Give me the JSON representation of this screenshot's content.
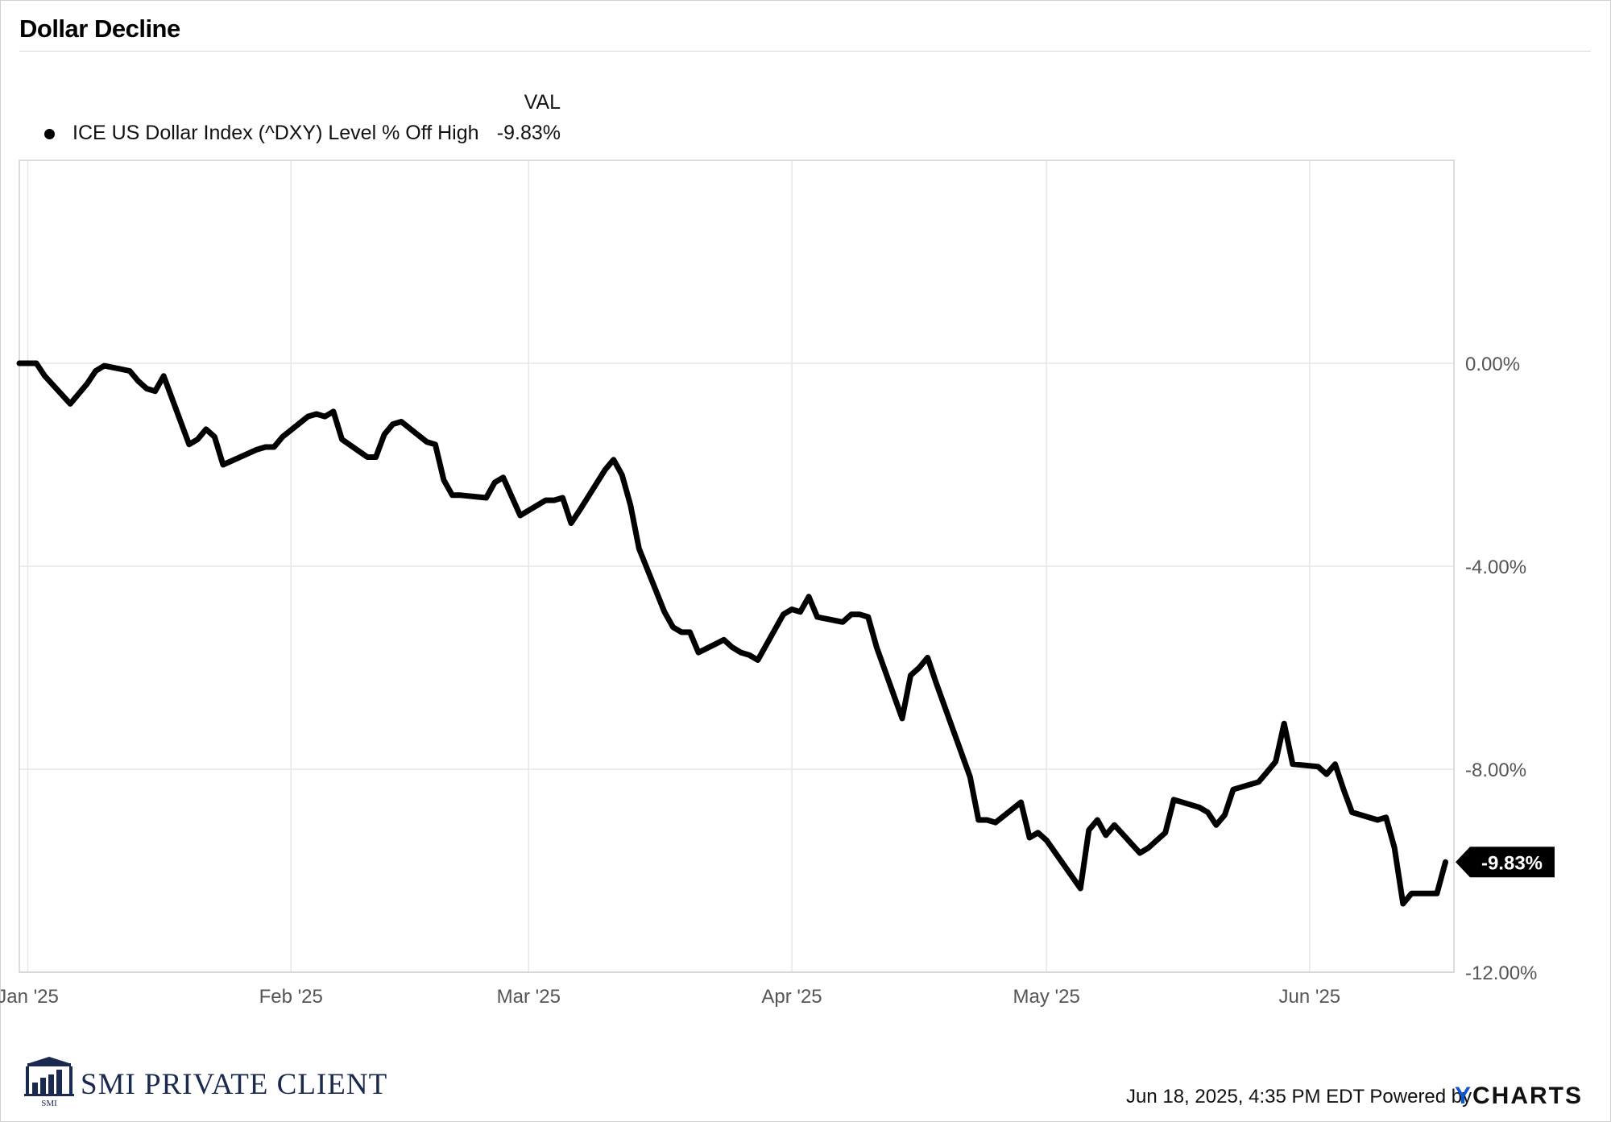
{
  "page": {
    "title": "Dollar Decline"
  },
  "legend": {
    "header": "VAL",
    "series_name": "ICE US Dollar Index (^DXY) Level % Off High",
    "value": "-9.83%"
  },
  "footer": {
    "timestamp": "Jun 18, 2025, 4:35 PM EDT",
    "powered_by": "Powered by",
    "ycharts_y": "Y",
    "ycharts_rest": "CHARTS",
    "brand": "SMI PRIVATE CLIENT",
    "brand_small": "SMI"
  },
  "colors": {
    "line": "#000000",
    "grid": "#e6e6e6",
    "axis_text": "#555555",
    "brand": "#1a2a4f",
    "ycharts_accent": "#1155cc"
  },
  "chart_data": {
    "type": "line",
    "title": "Dollar Decline",
    "x_unit": "days since 2025-01-01",
    "xlim": [
      -1,
      168
    ],
    "ylim": [
      -12,
      4
    ],
    "y_ticks": [
      0,
      -4,
      -8,
      -12
    ],
    "y_tick_labels": [
      "0.00%",
      "-4.00%",
      "-8.00%",
      "-12.00%"
    ],
    "x_ticks": [
      0,
      31,
      59,
      90,
      120,
      151
    ],
    "x_tick_labels": [
      "Jan '25",
      "Feb '25",
      "Mar '25",
      "Apr '25",
      "May '25",
      "Jun '25"
    ],
    "grid": true,
    "legend_position": "top-left",
    "last_value_label": "-9.83%",
    "series": [
      {
        "name": "ICE US Dollar Index (^DXY) Level % Off High",
        "x": [
          -1,
          1,
          2,
          5,
          7,
          8,
          9,
          12,
          13,
          14,
          15,
          16,
          19,
          20,
          21,
          22,
          23,
          27,
          28,
          29,
          30,
          33,
          34,
          35,
          36,
          37,
          40,
          41,
          42,
          43,
          44,
          47,
          48,
          49,
          50,
          51,
          54,
          55,
          56,
          58,
          61,
          62,
          63,
          64,
          65,
          68,
          69,
          70,
          71,
          72,
          75,
          76,
          77,
          78,
          79,
          82,
          83,
          84,
          85,
          86,
          89,
          90,
          91,
          92,
          93,
          96,
          97,
          98,
          99,
          100,
          103,
          104,
          105,
          106,
          107,
          111,
          112,
          113,
          114,
          117,
          118,
          119,
          120,
          124,
          125,
          126,
          127,
          128,
          131,
          132,
          133,
          134,
          135,
          138,
          139,
          140,
          141,
          142,
          145,
          146,
          147,
          148,
          149,
          152,
          153,
          154,
          155,
          156,
          159,
          160,
          161,
          162,
          163,
          166,
          167
        ],
        "y": [
          0.0,
          0.0,
          -0.25,
          -0.8,
          -0.4,
          -0.15,
          -0.05,
          -0.15,
          -0.35,
          -0.5,
          -0.55,
          -0.25,
          -1.6,
          -1.5,
          -1.3,
          -1.45,
          -2.0,
          -1.7,
          -1.65,
          -1.65,
          -1.45,
          -1.05,
          -1.0,
          -1.05,
          -0.95,
          -1.5,
          -1.85,
          -1.85,
          -1.4,
          -1.2,
          -1.15,
          -1.55,
          -1.6,
          -2.3,
          -2.6,
          -2.6,
          -2.65,
          -2.35,
          -2.25,
          -3.0,
          -2.7,
          -2.7,
          -2.65,
          -3.15,
          -2.9,
          -2.1,
          -1.9,
          -2.2,
          -2.8,
          -3.65,
          -4.9,
          -5.2,
          -5.3,
          -5.3,
          -5.7,
          -5.45,
          -5.6,
          -5.7,
          -5.75,
          -5.85,
          -4.95,
          -4.85,
          -4.9,
          -4.6,
          -5.0,
          -5.1,
          -4.95,
          -4.95,
          -5.0,
          -5.6,
          -7.0,
          -6.15,
          -6.0,
          -5.8,
          -6.3,
          -8.15,
          -9.0,
          -9.0,
          -9.05,
          -8.65,
          -9.35,
          -9.25,
          -9.4,
          -10.35,
          -9.2,
          -9.0,
          -9.3,
          -9.1,
          -9.65,
          -9.55,
          -9.4,
          -9.25,
          -8.6,
          -8.75,
          -8.85,
          -9.1,
          -8.9,
          -8.4,
          -8.25,
          -8.05,
          -7.85,
          -7.1,
          -7.9,
          -7.95,
          -8.1,
          -7.9,
          -8.4,
          -8.85,
          -9.0,
          -8.95,
          -9.55,
          -10.65,
          -10.45,
          -10.45,
          -9.83
        ]
      }
    ]
  }
}
